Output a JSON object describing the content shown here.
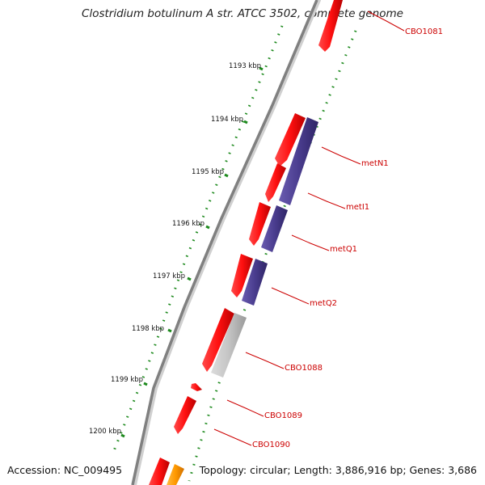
{
  "title": "Clostridium botulinum A str. ATCC 3502, complete genome",
  "footer": {
    "accession": "Accession: NC_009495",
    "topology": "Topology: circular; Length: 3,886,916 bp; Genes: 3,686"
  },
  "tick_labels": [
    "1193 kbp",
    "1194 kbp",
    "1195 kbp",
    "1196 kbp",
    "1197 kbp",
    "1198 kbp",
    "1199 kbp",
    "1200 kbp"
  ],
  "gene_labels": [
    "CBO1081",
    "metN1",
    "metI1",
    "metQ1",
    "metQ2",
    "CBO1088",
    "CBO1089",
    "CBO1090"
  ],
  "colors": {
    "backbone": "#808080",
    "forward_gene": "#ee1111",
    "reverse_gene": "#4a3d8f",
    "other_gene": "#c0c0c0",
    "orange_gene": "#ff9900",
    "gc_dots": "#1e8a1e",
    "label_text": "#cc0000"
  }
}
